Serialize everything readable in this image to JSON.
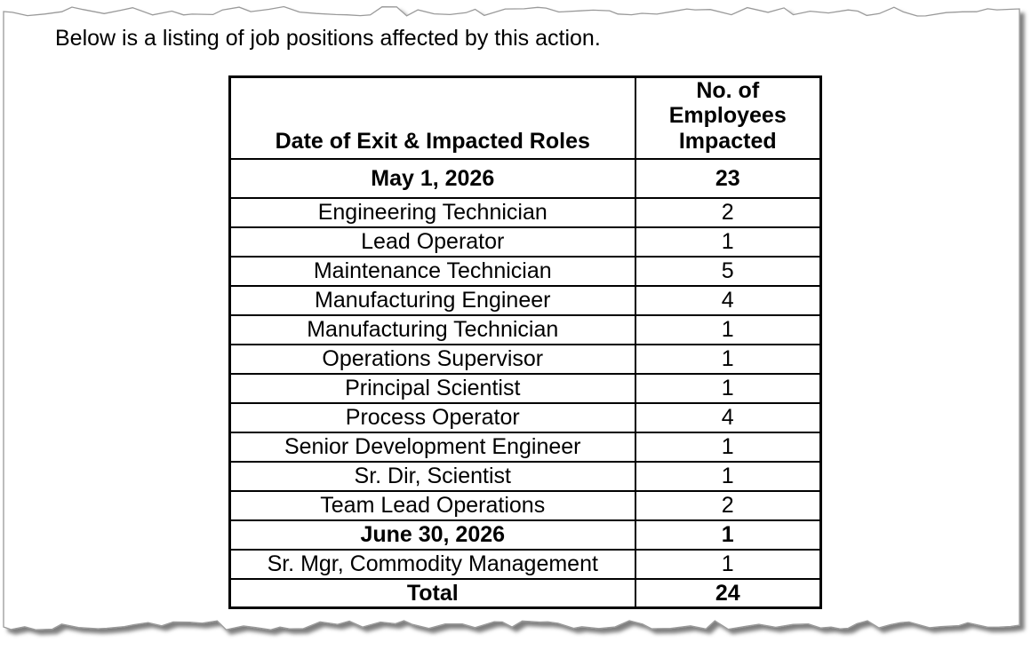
{
  "page": {
    "intro": "Below is a listing of job positions affected by this action."
  },
  "table": {
    "col1_header": "Date of Exit & Impacted Roles",
    "col2_header": "No. of Employees Impacted",
    "rows": [
      {
        "role": "May 1, 2026",
        "count": "23",
        "bold": true
      },
      {
        "role": "Engineering Technician",
        "count": "2",
        "bold": false
      },
      {
        "role": "Lead Operator",
        "count": "1",
        "bold": false
      },
      {
        "role": "Maintenance Technician",
        "count": "5",
        "bold": false
      },
      {
        "role": "Manufacturing Engineer",
        "count": "4",
        "bold": false
      },
      {
        "role": "Manufacturing Technician",
        "count": "1",
        "bold": false
      },
      {
        "role": "Operations Supervisor",
        "count": "1",
        "bold": false
      },
      {
        "role": "Principal Scientist",
        "count": "1",
        "bold": false
      },
      {
        "role": "Process Operator",
        "count": "4",
        "bold": false
      },
      {
        "role": "Senior Development Engineer",
        "count": "1",
        "bold": false
      },
      {
        "role": "Sr. Dir, Scientist",
        "count": "1",
        "bold": false
      },
      {
        "role": "Team Lead Operations",
        "count": "2",
        "bold": false
      },
      {
        "role": "June 30, 2026",
        "count": "1",
        "bold": true
      },
      {
        "role": "Sr. Mgr, Commodity Management",
        "count": "1",
        "bold": false
      },
      {
        "role": "Total",
        "count": "24",
        "bold": true
      }
    ]
  },
  "colors": {
    "paper": "#ffffff",
    "table_border": "#000000",
    "torn_edge": "#9a9a9a",
    "shadow": "#000000"
  }
}
